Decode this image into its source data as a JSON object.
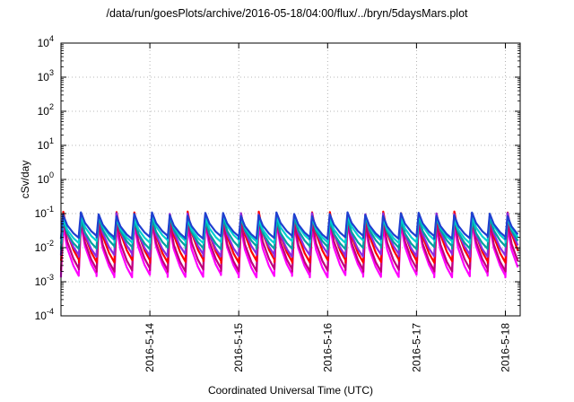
{
  "chart_data": {
    "type": "line",
    "title": "/data/run/goesPlots/archive/2016-05-18/04:00/flux/../bryn/5daysMars.plot",
    "xlabel": "Coordinated Universal Time (UTC)",
    "ylabel": "cSv/day",
    "yscale": "log",
    "ylim": [
      0.0001,
      10000
    ],
    "y_ticks": [
      {
        "value": 0.0001,
        "base": "10",
        "exp": "-4"
      },
      {
        "value": 0.001,
        "base": "10",
        "exp": "-3"
      },
      {
        "value": 0.01,
        "base": "10",
        "exp": "-2"
      },
      {
        "value": 0.1,
        "base": "10",
        "exp": "-1"
      },
      {
        "value": 1,
        "base": "10",
        "exp": "0"
      },
      {
        "value": 10,
        "base": "10",
        "exp": "1"
      },
      {
        "value": 100,
        "base": "10",
        "exp": "2"
      },
      {
        "value": 1000,
        "base": "10",
        "exp": "3"
      },
      {
        "value": 10000,
        "base": "10",
        "exp": "4"
      }
    ],
    "xlim": [
      "2016-05-13T00:00",
      "2016-05-18T04:00"
    ],
    "x_ticks": [
      "2016-5-14",
      "2016-5-15",
      "2016-5-16",
      "2016-5-17",
      "2016-5-18"
    ],
    "grid": true,
    "description": "Periodic sawtooth dose-rate traces; roughly 5 cycles per day",
    "cycles_per_day": 5,
    "series": [
      {
        "color": "#ff00ff",
        "peak": 0.045,
        "trough": 0.0015
      },
      {
        "color": "#c0007a",
        "peak": 0.06,
        "trough": 0.0022
      },
      {
        "color": "#ff0000",
        "peak": 0.1,
        "trough": 0.004
      },
      {
        "color": "#8a2be2",
        "peak": 0.09,
        "trough": 0.006
      },
      {
        "color": "#00a0a0",
        "peak": 0.07,
        "trough": 0.01
      },
      {
        "color": "#00d0d0",
        "peak": 0.08,
        "trough": 0.015
      },
      {
        "color": "#1f3fd0",
        "peak": 0.095,
        "trough": 0.02
      }
    ]
  }
}
